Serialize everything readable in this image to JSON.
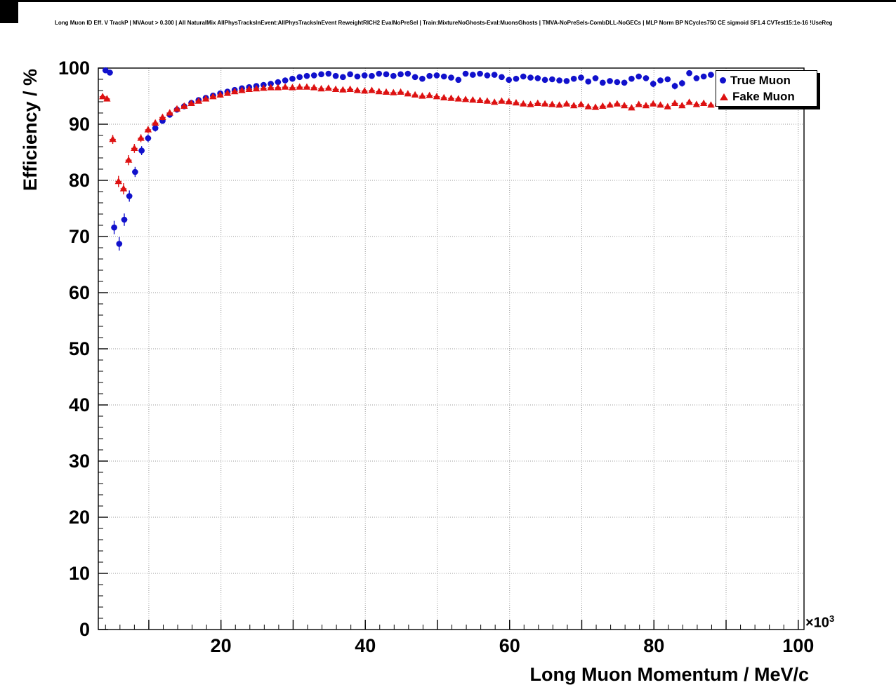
{
  "chart_data": {
    "type": "scatter",
    "title": "Long Muon ID Eff. V TrackP | MVAout > 0.300 | All NaturalMix AllPhysTracksInEvent:AllPhysTracksInEvent ReweightRICH2 EvalNoPreSel | Train:MixtureNoGhosts-Eval:MuonsGhosts | TMVA-NoPreSels-CombDLL-NoGECs | MLP Norm BP NCycles750 CE sigmoid SF1.4 CVTest15:1e-16 !UseReg",
    "xlabel": "Long Muon Momentum / MeV/c",
    "ylabel": "Efficiency / %",
    "x_axis_exp_base": "×10",
    "x_axis_exp_power": "3",
    "xlim": [
      3,
      100.8
    ],
    "ylim": [
      0,
      100
    ],
    "x_major_ticks": [
      20,
      40,
      60,
      80,
      100
    ],
    "y_tick_values": [
      0,
      10,
      20,
      30,
      40,
      50,
      60,
      70,
      80,
      90,
      100
    ],
    "x_grid_every": 10,
    "y_grid_every": 10,
    "x_minor_step": 2,
    "y_minor_step": 2,
    "grid": true,
    "grid_color": "#999999",
    "frame_color": "#000000",
    "legend_position": "top-right",
    "series": [
      {
        "name": "True Muon",
        "marker": "circle",
        "color": "#1111cc",
        "points": [
          [
            4.0,
            99.6,
            0.3
          ],
          [
            4.6,
            99.2,
            0.4
          ],
          [
            5.2,
            71.6,
            1.2
          ],
          [
            5.9,
            68.7,
            1.2
          ],
          [
            6.6,
            73.0,
            1.1
          ],
          [
            7.3,
            77.2,
            1.0
          ],
          [
            8.1,
            81.5,
            0.9
          ],
          [
            9.0,
            85.3,
            0.8
          ],
          [
            9.9,
            87.5,
            0.7
          ],
          [
            10.9,
            89.3,
            0.6
          ],
          [
            11.9,
            90.6,
            0.5
          ],
          [
            12.9,
            91.7,
            0.5
          ],
          [
            13.9,
            92.6,
            0.4
          ],
          [
            14.9,
            93.2,
            0.4
          ],
          [
            15.9,
            93.8,
            0.4
          ],
          [
            16.9,
            94.3,
            0.4
          ],
          [
            17.9,
            94.7,
            0.4
          ],
          [
            18.9,
            95.1,
            0.3
          ],
          [
            19.9,
            95.5,
            0.3
          ],
          [
            20.9,
            95.8,
            0.3
          ],
          [
            21.9,
            96.1,
            0.3
          ],
          [
            22.9,
            96.4,
            0.3
          ],
          [
            23.9,
            96.6,
            0.3
          ],
          [
            24.9,
            96.8,
            0.3
          ],
          [
            25.9,
            97.0,
            0.3
          ],
          [
            26.9,
            97.2,
            0.3
          ],
          [
            27.9,
            97.5,
            0.3
          ],
          [
            28.9,
            97.8,
            0.3
          ],
          [
            29.9,
            98.1,
            0.3
          ],
          [
            30.9,
            98.4,
            0.3
          ],
          [
            31.9,
            98.6,
            0.3
          ],
          [
            32.9,
            98.7,
            0.3
          ],
          [
            33.9,
            98.9,
            0.3
          ],
          [
            34.9,
            99.0,
            0.3
          ],
          [
            35.9,
            98.6,
            0.3
          ],
          [
            36.9,
            98.4,
            0.3
          ],
          [
            37.9,
            98.9,
            0.3
          ],
          [
            38.9,
            98.5,
            0.3
          ],
          [
            39.9,
            98.7,
            0.3
          ],
          [
            40.9,
            98.6,
            0.3
          ],
          [
            41.9,
            99.0,
            0.3
          ],
          [
            42.9,
            98.9,
            0.3
          ],
          [
            43.9,
            98.6,
            0.3
          ],
          [
            44.9,
            98.9,
            0.3
          ],
          [
            45.9,
            99.0,
            0.3
          ],
          [
            46.9,
            98.4,
            0.3
          ],
          [
            47.9,
            98.1,
            0.4
          ],
          [
            48.9,
            98.6,
            0.3
          ],
          [
            49.9,
            98.7,
            0.3
          ],
          [
            50.9,
            98.5,
            0.3
          ],
          [
            51.9,
            98.3,
            0.4
          ],
          [
            52.9,
            97.9,
            0.4
          ],
          [
            53.9,
            99.0,
            0.3
          ],
          [
            54.9,
            98.8,
            0.3
          ],
          [
            55.9,
            99.0,
            0.3
          ],
          [
            56.9,
            98.7,
            0.3
          ],
          [
            57.9,
            98.8,
            0.3
          ],
          [
            58.9,
            98.4,
            0.4
          ],
          [
            59.9,
            97.9,
            0.4
          ],
          [
            60.9,
            98.1,
            0.4
          ],
          [
            61.9,
            98.5,
            0.4
          ],
          [
            62.9,
            98.3,
            0.4
          ],
          [
            63.9,
            98.2,
            0.4
          ],
          [
            64.9,
            97.9,
            0.4
          ],
          [
            65.9,
            98.0,
            0.4
          ],
          [
            66.9,
            97.8,
            0.4
          ],
          [
            67.9,
            97.7,
            0.5
          ],
          [
            68.9,
            98.1,
            0.4
          ],
          [
            69.9,
            98.3,
            0.4
          ],
          [
            70.9,
            97.6,
            0.5
          ],
          [
            71.9,
            98.2,
            0.4
          ],
          [
            72.9,
            97.4,
            0.5
          ],
          [
            73.9,
            97.7,
            0.5
          ],
          [
            74.9,
            97.5,
            0.5
          ],
          [
            75.9,
            97.4,
            0.5
          ],
          [
            76.9,
            98.1,
            0.5
          ],
          [
            77.9,
            98.5,
            0.4
          ],
          [
            78.9,
            98.2,
            0.5
          ],
          [
            79.9,
            97.2,
            0.6
          ],
          [
            80.9,
            97.8,
            0.5
          ],
          [
            81.9,
            98.0,
            0.5
          ],
          [
            82.9,
            96.8,
            0.6
          ],
          [
            83.9,
            97.3,
            0.6
          ],
          [
            84.9,
            99.1,
            0.4
          ],
          [
            85.9,
            98.2,
            0.5
          ],
          [
            86.9,
            98.5,
            0.5
          ],
          [
            87.9,
            98.8,
            0.5
          ]
        ]
      },
      {
        "name": "Fake Muon",
        "marker": "triangle",
        "color": "#dd1111",
        "points": [
          [
            3.6,
            94.9,
            0.4
          ],
          [
            4.2,
            94.5,
            0.4
          ],
          [
            5.0,
            87.3,
            0.8
          ],
          [
            5.8,
            79.8,
            1.0
          ],
          [
            6.5,
            78.5,
            1.0
          ],
          [
            7.2,
            83.6,
            0.9
          ],
          [
            8.0,
            85.7,
            0.8
          ],
          [
            8.9,
            87.5,
            0.7
          ],
          [
            9.9,
            89.0,
            0.6
          ],
          [
            10.9,
            90.2,
            0.5
          ],
          [
            11.9,
            91.2,
            0.5
          ],
          [
            12.9,
            92.0,
            0.4
          ],
          [
            13.9,
            92.7,
            0.4
          ],
          [
            14.9,
            93.2,
            0.4
          ],
          [
            15.9,
            93.7,
            0.3
          ],
          [
            16.9,
            94.1,
            0.3
          ],
          [
            17.9,
            94.5,
            0.3
          ],
          [
            18.9,
            94.9,
            0.3
          ],
          [
            19.9,
            95.2,
            0.3
          ],
          [
            20.9,
            95.5,
            0.3
          ],
          [
            21.9,
            95.8,
            0.3
          ],
          [
            22.9,
            96.0,
            0.3
          ],
          [
            23.9,
            96.2,
            0.2
          ],
          [
            24.9,
            96.3,
            0.2
          ],
          [
            25.9,
            96.4,
            0.2
          ],
          [
            26.9,
            96.5,
            0.2
          ],
          [
            27.9,
            96.5,
            0.2
          ],
          [
            28.9,
            96.6,
            0.2
          ],
          [
            29.9,
            96.5,
            0.2
          ],
          [
            30.9,
            96.6,
            0.2
          ],
          [
            31.9,
            96.6,
            0.2
          ],
          [
            32.9,
            96.5,
            0.2
          ],
          [
            33.9,
            96.3,
            0.2
          ],
          [
            34.9,
            96.4,
            0.2
          ],
          [
            35.9,
            96.2,
            0.2
          ],
          [
            36.9,
            96.1,
            0.2
          ],
          [
            37.9,
            96.2,
            0.2
          ],
          [
            38.9,
            96.0,
            0.2
          ],
          [
            39.9,
            95.9,
            0.2
          ],
          [
            40.9,
            96.0,
            0.2
          ],
          [
            41.9,
            95.8,
            0.2
          ],
          [
            42.9,
            95.7,
            0.2
          ],
          [
            43.9,
            95.6,
            0.2
          ],
          [
            44.9,
            95.7,
            0.2
          ],
          [
            45.9,
            95.4,
            0.2
          ],
          [
            46.9,
            95.2,
            0.2
          ],
          [
            47.9,
            95.0,
            0.3
          ],
          [
            48.9,
            95.1,
            0.3
          ],
          [
            49.9,
            94.9,
            0.3
          ],
          [
            50.9,
            94.7,
            0.3
          ],
          [
            51.9,
            94.6,
            0.3
          ],
          [
            52.9,
            94.5,
            0.3
          ],
          [
            53.9,
            94.4,
            0.3
          ],
          [
            54.9,
            94.3,
            0.3
          ],
          [
            55.9,
            94.2,
            0.3
          ],
          [
            56.9,
            94.1,
            0.3
          ],
          [
            57.9,
            93.9,
            0.3
          ],
          [
            58.9,
            94.1,
            0.3
          ],
          [
            59.9,
            94.0,
            0.3
          ],
          [
            60.9,
            93.8,
            0.3
          ],
          [
            61.9,
            93.6,
            0.3
          ],
          [
            62.9,
            93.5,
            0.3
          ],
          [
            63.9,
            93.7,
            0.3
          ],
          [
            64.9,
            93.6,
            0.3
          ],
          [
            65.9,
            93.5,
            0.3
          ],
          [
            66.9,
            93.4,
            0.3
          ],
          [
            67.9,
            93.6,
            0.3
          ],
          [
            68.9,
            93.3,
            0.3
          ],
          [
            69.9,
            93.5,
            0.3
          ],
          [
            70.9,
            93.1,
            0.3
          ],
          [
            71.9,
            93.0,
            0.3
          ],
          [
            72.9,
            93.2,
            0.3
          ],
          [
            73.9,
            93.4,
            0.4
          ],
          [
            74.9,
            93.6,
            0.4
          ],
          [
            75.9,
            93.3,
            0.4
          ],
          [
            76.9,
            92.9,
            0.4
          ],
          [
            77.9,
            93.5,
            0.4
          ],
          [
            78.9,
            93.3,
            0.4
          ],
          [
            79.9,
            93.6,
            0.4
          ],
          [
            80.9,
            93.4,
            0.4
          ],
          [
            81.9,
            93.1,
            0.4
          ],
          [
            82.9,
            93.7,
            0.4
          ],
          [
            83.9,
            93.3,
            0.4
          ],
          [
            84.9,
            93.9,
            0.4
          ],
          [
            85.9,
            93.5,
            0.4
          ],
          [
            86.9,
            93.7,
            0.4
          ],
          [
            87.9,
            93.4,
            0.4
          ],
          [
            88.9,
            93.6,
            0.4
          ],
          [
            89.9,
            93.8,
            0.4
          ],
          [
            90.9,
            93.5,
            0.4
          ],
          [
            91.9,
            93.7,
            0.5
          ],
          [
            92.9,
            93.3,
            0.5
          ],
          [
            93.9,
            93.6,
            0.5
          ],
          [
            94.9,
            93.9,
            0.5
          ],
          [
            95.9,
            93.5,
            0.5
          ],
          [
            96.9,
            93.7,
            0.5
          ],
          [
            97.9,
            93.4,
            0.5
          ],
          [
            98.9,
            93.6,
            0.5
          ]
        ]
      }
    ]
  }
}
